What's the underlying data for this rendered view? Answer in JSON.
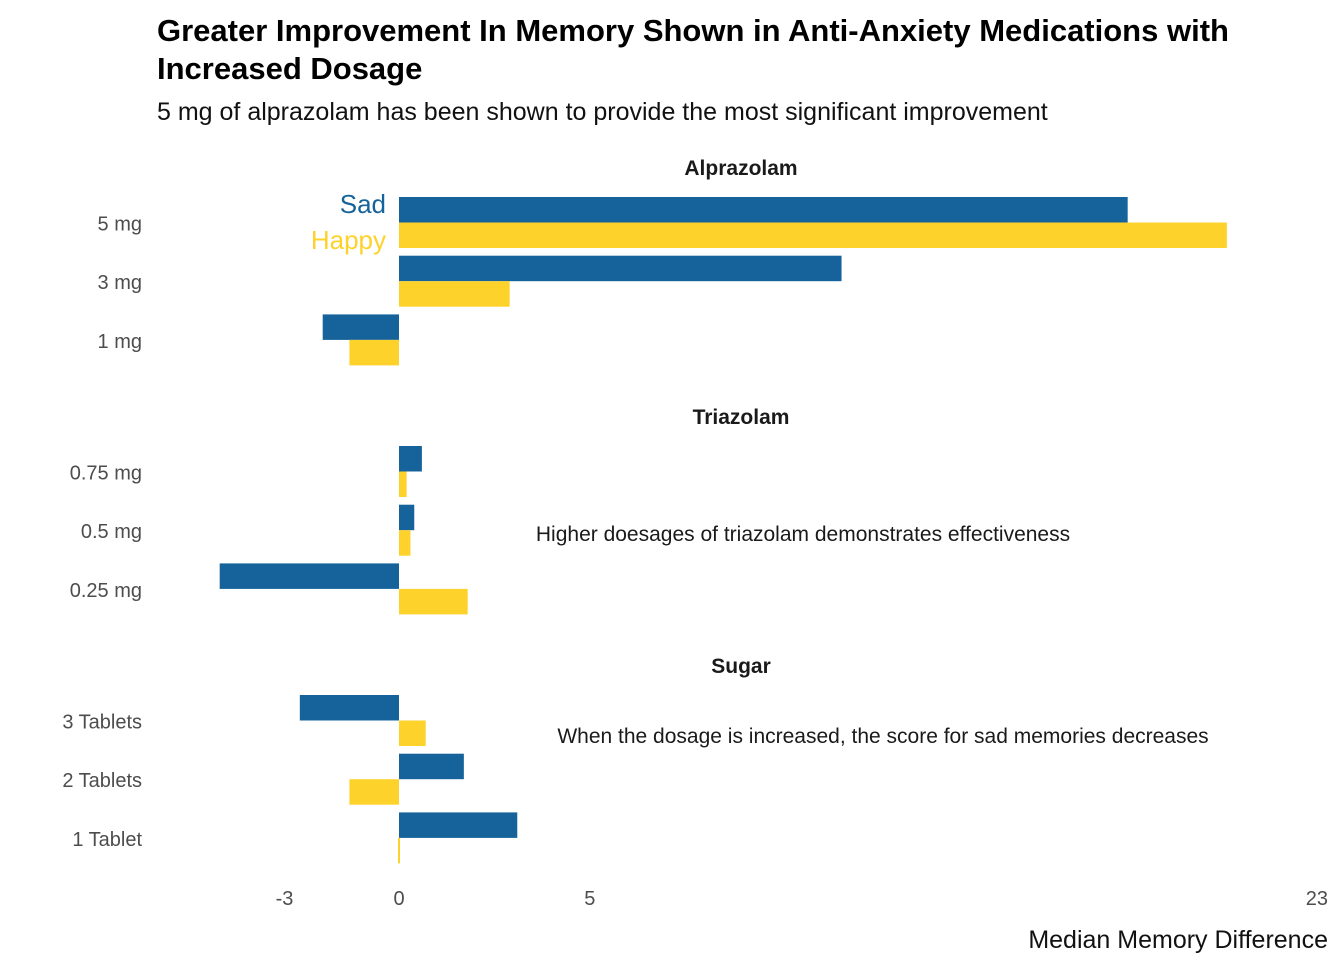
{
  "colors": {
    "sad": "#16639B",
    "happy": "#FDD22B"
  },
  "header": {
    "title": "Greater Improvement In Memory Shown in Anti-Anxiety Medications with Increased Dosage",
    "subtitle": "5 mg of alprazolam has been shown to provide the most significant improvement"
  },
  "chart_data": {
    "type": "bar",
    "orientation": "horizontal",
    "title": "Greater Improvement In Memory Shown in Anti-Anxiety Medications with Increased Dosage",
    "subtitle": "5 mg of alprazolam has been shown to provide the most significant improvement",
    "xlabel": "Median Memory Difference",
    "ylabel": "",
    "xlim": [
      -8.1,
      23
    ],
    "x_ticks": [
      -3,
      0,
      5,
      23
    ],
    "legend": [
      "Sad",
      "Happy"
    ],
    "legend_placement": "inline-left-of-top-bars",
    "grid": false,
    "panels": [
      {
        "name": "Alprazolam",
        "categories": [
          "5 mg",
          "3 mg",
          "1 mg"
        ],
        "series": [
          {
            "name": "Sad",
            "values": [
              19.1,
              11.6,
              -2.0
            ]
          },
          {
            "name": "Happy",
            "values": [
              21.7,
              2.9,
              -1.3
            ]
          }
        ],
        "annotation": ""
      },
      {
        "name": "Triazolam",
        "categories": [
          "0.75 mg",
          "0.5 mg",
          "0.25 mg"
        ],
        "series": [
          {
            "name": "Sad",
            "values": [
              0.6,
              0.4,
              -4.7
            ]
          },
          {
            "name": "Happy",
            "values": [
              0.2,
              0.3,
              1.8
            ]
          }
        ],
        "annotation": "Higher doesages of triazolam demonstrates effectiveness"
      },
      {
        "name": "Sugar",
        "categories": [
          "3 Tablets",
          "2 Tablets",
          "1 Tablet"
        ],
        "series": [
          {
            "name": "Sad",
            "values": [
              -2.6,
              1.7,
              3.1
            ]
          },
          {
            "name": "Happy",
            "values": [
              0.7,
              -1.3,
              0.0
            ]
          }
        ],
        "annotation": "When the dosage is increased, the score for sad memories decreases"
      }
    ]
  }
}
